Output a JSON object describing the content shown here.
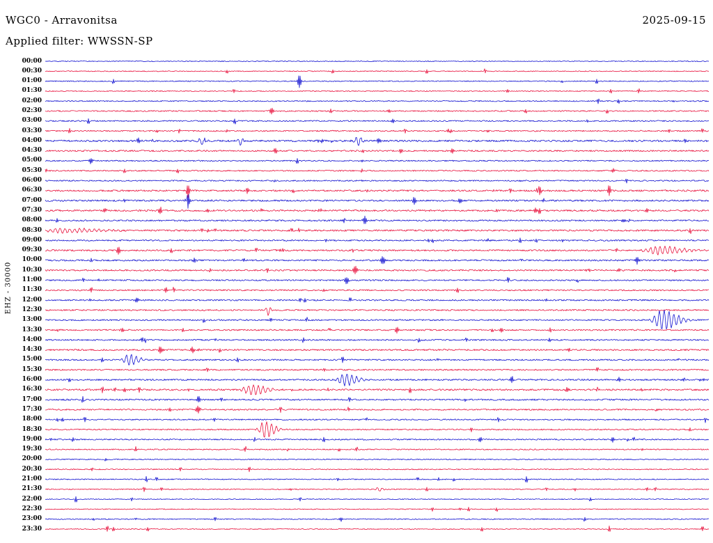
{
  "header": {
    "station_title": "WGC0 - Arravonitsa",
    "date": "2025-09-15",
    "filter_label": "Applied filter: WWSSN-SP"
  },
  "axis": {
    "left_label": "EHZ - 30000"
  },
  "chart_data": {
    "type": "seismogram-helicorder",
    "title": "WGC0 - Arravonitsa",
    "date": "2025-09-15",
    "filter": "WWSSN-SP",
    "channel": "EHZ",
    "scale": "30000",
    "minutes_per_row": 30,
    "colors": {
      "blue": "#1212d0",
      "red": "#e8113c"
    },
    "row_labels": [
      "00:00",
      "00:30",
      "01:00",
      "01:30",
      "02:00",
      "02:30",
      "03:00",
      "03:30",
      "04:00",
      "04:30",
      "05:00",
      "05:30",
      "06:00",
      "06:30",
      "07:00",
      "07:30",
      "08:00",
      "08:30",
      "09:00",
      "09:30",
      "10:00",
      "10:30",
      "11:00",
      "11:30",
      "12:00",
      "12:30",
      "13:00",
      "13:30",
      "14:00",
      "14:30",
      "15:00",
      "15:30",
      "16:00",
      "16:30",
      "17:00",
      "17:30",
      "18:00",
      "18:30",
      "19:00",
      "19:30",
      "20:00",
      "20:30",
      "21:00",
      "21:30",
      "22:00",
      "22:30",
      "23:00",
      "23:30"
    ],
    "row_colors": [
      "blue",
      "red",
      "blue",
      "red",
      "blue",
      "red",
      "blue",
      "red",
      "blue",
      "red",
      "blue",
      "red",
      "blue",
      "red",
      "blue",
      "red",
      "blue",
      "red",
      "blue",
      "red",
      "blue",
      "red",
      "blue",
      "red",
      "blue",
      "red",
      "blue",
      "red",
      "blue",
      "red",
      "blue",
      "red",
      "blue",
      "red",
      "blue",
      "red",
      "blue",
      "red",
      "blue",
      "red",
      "blue",
      "red",
      "blue",
      "red",
      "blue",
      "red",
      "blue",
      "red"
    ],
    "noise_levels": [
      0.6,
      0.6,
      0.7,
      0.7,
      0.8,
      0.9,
      0.9,
      0.9,
      1.3,
      1.1,
      0.9,
      0.9,
      0.9,
      1.2,
      1.2,
      1.2,
      1.1,
      1.2,
      1.0,
      1.1,
      1.1,
      1.1,
      1.0,
      1.0,
      1.0,
      1.0,
      1.0,
      1.0,
      1.0,
      1.1,
      1.0,
      1.0,
      1.1,
      1.2,
      1.1,
      1.0,
      0.9,
      0.9,
      0.9,
      0.8,
      0.7,
      0.7,
      0.7,
      0.7,
      0.6,
      0.6,
      0.7,
      0.6
    ],
    "events": [
      {
        "row": 2,
        "t": 0.383,
        "amp": 9,
        "w": 2
      },
      {
        "row": 3,
        "t": 0.698,
        "amp": 2.5,
        "w": 2
      },
      {
        "row": 5,
        "t": 0.341,
        "amp": 5,
        "w": 2
      },
      {
        "row": 5,
        "t": 0.517,
        "amp": 3,
        "w": 2
      },
      {
        "row": 6,
        "t": 0.525,
        "amp": 6,
        "w": 2
      },
      {
        "row": 7,
        "t": 0.609,
        "amp": 4,
        "w": 2
      },
      {
        "row": 7,
        "t": 0.666,
        "amp": 2.5,
        "w": 2
      },
      {
        "row": 8,
        "t": 0.142,
        "amp": 5,
        "w": 2.5
      },
      {
        "row": 8,
        "t": 0.236,
        "amp": 6,
        "w": 3
      },
      {
        "row": 8,
        "t": 0.294,
        "amp": 6,
        "w": 3
      },
      {
        "row": 8,
        "t": 0.414,
        "amp": 5,
        "w": 2.5
      },
      {
        "row": 8,
        "t": 0.472,
        "amp": 7,
        "w": 4
      },
      {
        "row": 8,
        "t": 0.504,
        "amp": 5,
        "w": 2.5
      },
      {
        "row": 9,
        "t": 0.346,
        "amp": 5,
        "w": 2
      },
      {
        "row": 9,
        "t": 0.535,
        "amp": 4,
        "w": 2
      },
      {
        "row": 9,
        "t": 0.614,
        "amp": 3,
        "w": 2
      },
      {
        "row": 10,
        "t": 0.068,
        "amp": 5,
        "w": 2
      },
      {
        "row": 10,
        "t": 0.477,
        "amp": 3,
        "w": 2
      },
      {
        "row": 11,
        "t": 0.855,
        "amp": 3.5,
        "w": 2
      },
      {
        "row": 12,
        "t": 0.477,
        "amp": 2.5,
        "w": 2
      },
      {
        "row": 12,
        "t": 0.713,
        "amp": 2.5,
        "w": 2
      },
      {
        "row": 13,
        "t": 0.215,
        "amp": 10,
        "w": 1.6
      },
      {
        "row": 13,
        "t": 0.304,
        "amp": 5,
        "w": 2
      },
      {
        "row": 13,
        "t": 0.745,
        "amp": 6,
        "w": 2
      },
      {
        "row": 13,
        "t": 0.85,
        "amp": 7,
        "w": 2
      },
      {
        "row": 14,
        "t": 0.215,
        "amp": 11,
        "w": 1.6
      },
      {
        "row": 14,
        "t": 0.247,
        "amp": 4,
        "w": 2
      },
      {
        "row": 14,
        "t": 0.556,
        "amp": 5,
        "w": 2
      },
      {
        "row": 14,
        "t": 0.624,
        "amp": 5,
        "w": 2
      },
      {
        "row": 14,
        "t": 0.75,
        "amp": 3,
        "w": 2
      },
      {
        "row": 15,
        "t": 0.089,
        "amp": 4,
        "w": 2
      },
      {
        "row": 15,
        "t": 0.173,
        "amp": 5,
        "w": 2
      },
      {
        "row": 15,
        "t": 0.414,
        "amp": 6,
        "w": 2
      },
      {
        "row": 15,
        "t": 0.74,
        "amp": 4,
        "w": 2
      },
      {
        "row": 15,
        "t": 0.908,
        "amp": 3.5,
        "w": 2
      },
      {
        "row": 16,
        "t": 0.483,
        "amp": 8,
        "w": 2.2
      },
      {
        "row": 16,
        "t": 0.871,
        "amp": 3,
        "w": 2
      },
      {
        "row": 17,
        "t": 0.026,
        "amp": 3,
        "w": 18
      },
      {
        "row": 18,
        "t": 0.666,
        "amp": 3,
        "w": 2
      },
      {
        "row": 19,
        "t": 0.11,
        "amp": 6,
        "w": 2
      },
      {
        "row": 19,
        "t": 0.351,
        "amp": 5,
        "w": 2
      },
      {
        "row": 19,
        "t": 0.923,
        "amp": 6,
        "w": 12
      },
      {
        "row": 20,
        "t": 0.226,
        "amp": 6,
        "w": 2
      },
      {
        "row": 20,
        "t": 0.509,
        "amp": 6,
        "w": 2.5
      },
      {
        "row": 20,
        "t": 0.892,
        "amp": 5,
        "w": 2
      },
      {
        "row": 21,
        "t": 0.467,
        "amp": 6,
        "w": 2.5
      },
      {
        "row": 21,
        "t": 0.818,
        "amp": 5,
        "w": 2
      },
      {
        "row": 21,
        "t": 0.866,
        "amp": 4,
        "w": 2
      },
      {
        "row": 22,
        "t": 0.453,
        "amp": 7,
        "w": 2.2
      },
      {
        "row": 23,
        "t": 0.184,
        "amp": 5,
        "w": 2.5
      },
      {
        "row": 24,
        "t": 0.136,
        "amp": 7,
        "w": 2.2
      },
      {
        "row": 25,
        "t": 0.336,
        "amp": 7,
        "w": 3
      },
      {
        "row": 26,
        "t": 0.929,
        "amp": 14,
        "w": 8
      },
      {
        "row": 27,
        "t": 0.115,
        "amp": 5,
        "w": 2
      },
      {
        "row": 27,
        "t": 0.53,
        "amp": 4,
        "w": 2
      },
      {
        "row": 27,
        "t": 0.687,
        "amp": 4,
        "w": 2
      },
      {
        "row": 29,
        "t": 0.173,
        "amp": 5,
        "w": 2.5
      },
      {
        "row": 29,
        "t": 0.22,
        "amp": 6,
        "w": 2.5
      },
      {
        "row": 30,
        "t": 0.126,
        "amp": 8,
        "w": 5
      },
      {
        "row": 32,
        "t": 0.451,
        "amp": 9,
        "w": 6
      },
      {
        "row": 32,
        "t": 0.703,
        "amp": 5,
        "w": 2
      },
      {
        "row": 32,
        "t": 0.866,
        "amp": 5,
        "w": 2
      },
      {
        "row": 32,
        "t": 0.989,
        "amp": 5,
        "w": 2
      },
      {
        "row": 33,
        "t": 0.121,
        "amp": 4,
        "w": 2
      },
      {
        "row": 33,
        "t": 0.31,
        "amp": 7,
        "w": 8
      },
      {
        "row": 33,
        "t": 0.787,
        "amp": 4,
        "w": 2
      },
      {
        "row": 34,
        "t": 0.231,
        "amp": 5,
        "w": 2
      },
      {
        "row": 35,
        "t": 0.231,
        "amp": 6,
        "w": 2.5
      },
      {
        "row": 37,
        "t": 0.33,
        "amp": 12,
        "w": 5
      },
      {
        "row": 38,
        "t": 0.656,
        "amp": 4,
        "w": 2
      },
      {
        "row": 38,
        "t": 0.855,
        "amp": 4,
        "w": 2
      },
      {
        "row": 43,
        "t": 0.504,
        "amp": 3,
        "w": 4
      },
      {
        "row": 46,
        "t": 0.446,
        "amp": 3,
        "w": 2
      }
    ]
  }
}
